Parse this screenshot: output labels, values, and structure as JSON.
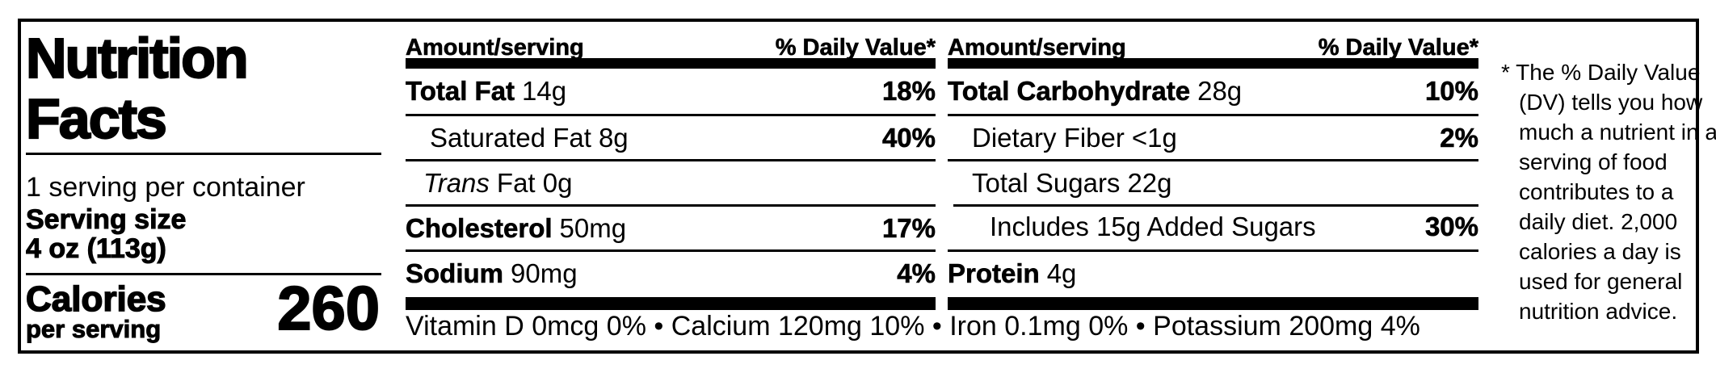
{
  "title": {
    "line1": "Nutrition",
    "line2": "Facts"
  },
  "serving": {
    "per_container": "1 serving per container",
    "label": "Serving size",
    "size": "4 oz (113g)"
  },
  "calories": {
    "label": "Calories",
    "sublabel": "per serving",
    "value": "260"
  },
  "columns": [
    {
      "header_amount": "Amount/serving",
      "header_dv": "% Daily Value*",
      "rows": [
        {
          "name": "Total Fat",
          "value": "14g",
          "dv": "18%"
        },
        {
          "name": "Saturated Fat",
          "value": "8g",
          "dv": "40%"
        },
        {
          "name": "Trans",
          "value": "Fat 0g",
          "dv": ""
        },
        {
          "name": "Cholesterol",
          "value": "50mg",
          "dv": "17%"
        },
        {
          "name": "Sodium",
          "value": "90mg",
          "dv": "4%"
        }
      ]
    },
    {
      "header_amount": "Amount/serving",
      "header_dv": "% Daily Value*",
      "rows": [
        {
          "name": "Total Carbohydrate",
          "value": "28g",
          "dv": "10%"
        },
        {
          "name": "Dietary Fiber",
          "value": "<1g",
          "dv": "2%"
        },
        {
          "name": "Total Sugars",
          "value": "22g",
          "dv": ""
        },
        {
          "name": "Includes 15g Added Sugars",
          "value": "",
          "dv": "30%"
        },
        {
          "name": "Protein",
          "value": "4g",
          "dv": ""
        }
      ]
    }
  ],
  "micronutrients": "Vitamin D 0mcg 0% • Calcium 120mg 10% • Iron 0.1mg 0% • Potassium 200mg 4%",
  "footnote": "* The % Daily Value (DV) tells you how much a nutrient in a serving of food contributes to a daily diet. 2,000 calories a day is used for general nutrition advice.",
  "colors": {
    "ink": "#000000",
    "background": "#ffffff"
  }
}
